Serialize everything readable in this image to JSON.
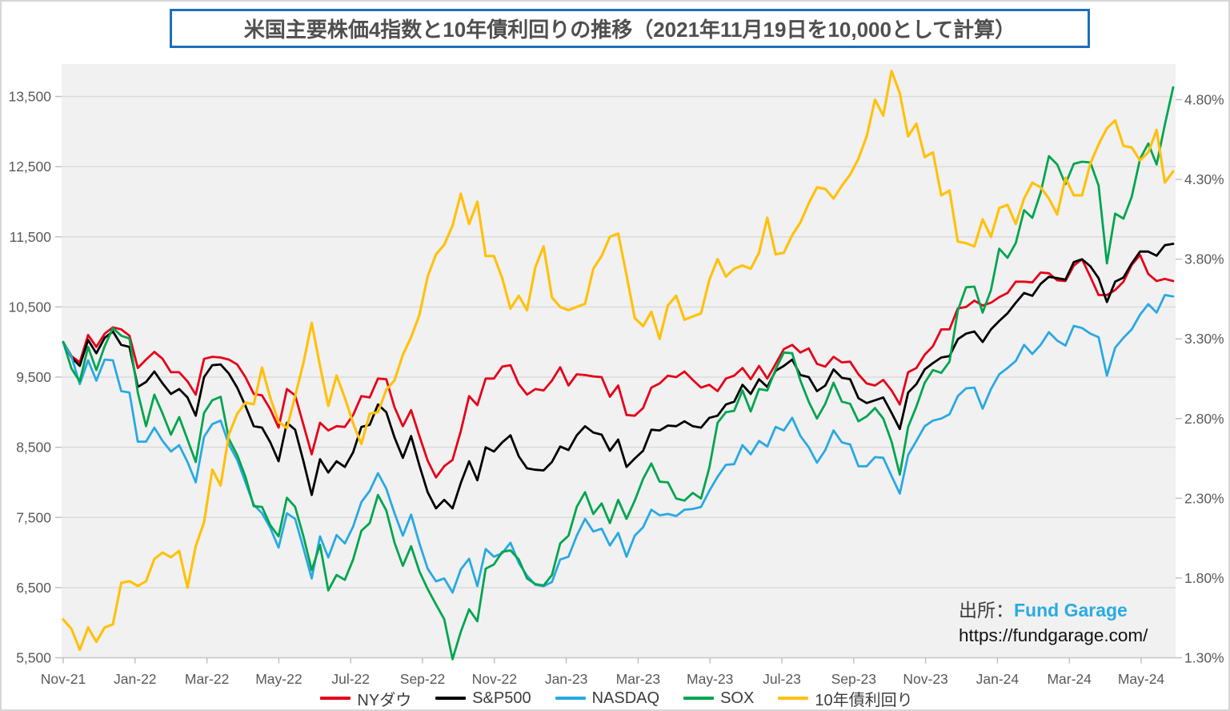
{
  "title": "米国主要株価4指数と10年債利回りの推移（2021年11月19日を10,000として計算）",
  "source": {
    "prefix": "出所：",
    "name": "Fund Garage",
    "url": "https://fundgarage.com/"
  },
  "chart_data": {
    "type": "line",
    "title": "米国主要株価4指数と10年債利回りの推移（2021年11月19日を10,000として計算）",
    "index_base": 10000,
    "grid": "horizontal",
    "legend_position": "bottom",
    "x_axis": {
      "tick_labels": [
        "Nov-21",
        "Jan-22",
        "Mar-22",
        "May-22",
        "Jul-22",
        "Sep-22",
        "Nov-22",
        "Jan-23",
        "Mar-23",
        "May-23",
        "Jul-23",
        "Sep-23",
        "Nov-23",
        "Jan-24",
        "Mar-24",
        "May-24"
      ]
    },
    "y_axis_left": {
      "tick_labels": [
        "13,500",
        "12,500",
        "11,500",
        "10,500",
        "9,500",
        "8,500",
        "7,500",
        "6,500",
        "5,500"
      ],
      "gridline_range": [
        5500,
        13500
      ]
    },
    "y_axis_right": {
      "tick_labels": [
        "4.80%",
        "4.30%",
        "3.80%",
        "3.30%",
        "2.80%",
        "2.30%",
        "1.80%",
        "1.30%"
      ],
      "gridline_range": [
        1.3,
        4.8
      ]
    },
    "series": [
      {
        "name": "NYダウ",
        "key": "dow",
        "color": "#e60019",
        "axis": "left",
        "values": [
          10000,
          9800,
          9710,
          10100,
          9930,
          10120,
          10210,
          10180,
          10090,
          9630,
          9750,
          9860,
          9760,
          9570,
          9570,
          9440,
          9250,
          9760,
          9790,
          9780,
          9750,
          9680,
          9500,
          9260,
          9240,
          9040,
          8780,
          9330,
          9240,
          8820,
          8400,
          8850,
          8740,
          8800,
          8790,
          8960,
          9230,
          9210,
          9480,
          9470,
          9070,
          8800,
          9030,
          8660,
          8310,
          8070,
          8230,
          8320,
          8730,
          9230,
          9100,
          9480,
          9480,
          9650,
          9670,
          9400,
          9250,
          9330,
          9310,
          9450,
          9640,
          9380,
          9540,
          9530,
          9510,
          9500,
          9220,
          9380,
          8960,
          8950,
          9060,
          9350,
          9410,
          9520,
          9500,
          9580,
          9460,
          9350,
          9390,
          9300,
          9480,
          9520,
          9630,
          9470,
          9660,
          9480,
          9690,
          9900,
          9960,
          9850,
          9910,
          9690,
          9650,
          9790,
          9710,
          9720,
          9540,
          9410,
          9380,
          9460,
          9310,
          9110,
          9570,
          9630,
          9820,
          9940,
          10180,
          10180,
          10480,
          10500,
          10590,
          10520,
          10560,
          10640,
          10700,
          10860,
          10860,
          10850,
          10990,
          10980,
          10880,
          10870,
          11090,
          11180,
          10930,
          10670,
          10670,
          10740,
          10860,
          11100,
          11240,
          10970,
          10870,
          10900,
          10870
        ]
      },
      {
        "name": "S&P500",
        "key": "sp500",
        "color": "#000000",
        "axis": "left",
        "values": [
          10000,
          9780,
          9660,
          10030,
          9840,
          10060,
          10150,
          9960,
          9930,
          9360,
          9430,
          9580,
          9410,
          9260,
          9330,
          9210,
          8950,
          9500,
          9670,
          9680,
          9550,
          9350,
          9090,
          8800,
          8780,
          8570,
          8300,
          8850,
          8750,
          8300,
          7820,
          8330,
          8140,
          8300,
          8220,
          8430,
          8790,
          8820,
          9110,
          9000,
          8640,
          8350,
          8660,
          8240,
          7860,
          7630,
          7750,
          7630,
          7990,
          8300,
          8030,
          8500,
          8440,
          8570,
          8670,
          8370,
          8200,
          8180,
          8170,
          8290,
          8510,
          8460,
          8670,
          8800,
          8710,
          8680,
          8450,
          8610,
          8220,
          8340,
          8450,
          8750,
          8740,
          8810,
          8800,
          8870,
          8800,
          8780,
          8920,
          8950,
          9110,
          9150,
          9390,
          9260,
          9470,
          9360,
          9590,
          9660,
          9750,
          9530,
          9500,
          9300,
          9380,
          9610,
          9490,
          9470,
          9200,
          9130,
          9170,
          9210,
          8990,
          8760,
          9280,
          9400,
          9610,
          9700,
          9780,
          9800,
          10040,
          10120,
          10150,
          10000,
          10180,
          10300,
          10410,
          10560,
          10700,
          10660,
          10830,
          10930,
          10910,
          10890,
          11140,
          11180,
          11080,
          10910,
          10570,
          10860,
          10920,
          11120,
          11290,
          11290,
          11230,
          11380,
          11400
        ]
      },
      {
        "name": "NASDAQ",
        "key": "nasdaq",
        "color": "#29a9e2",
        "axis": "left",
        "values": [
          10000,
          9790,
          9400,
          9740,
          9450,
          9750,
          9740,
          9300,
          9280,
          8580,
          8580,
          8780,
          8590,
          8440,
          8530,
          8290,
          8000,
          8650,
          8830,
          8880,
          8540,
          8320,
          8000,
          7680,
          7560,
          7350,
          7070,
          7560,
          7480,
          7060,
          6630,
          7230,
          6930,
          7250,
          7130,
          7370,
          7720,
          7880,
          8130,
          7910,
          7560,
          7240,
          7540,
          7130,
          6770,
          6590,
          6630,
          6430,
          6760,
          6910,
          6520,
          7050,
          6940,
          6990,
          7140,
          6850,
          6670,
          6540,
          6520,
          6580,
          6900,
          6940,
          7240,
          7480,
          7300,
          7340,
          7100,
          7280,
          6940,
          7240,
          7360,
          7610,
          7530,
          7550,
          7520,
          7610,
          7620,
          7650,
          7880,
          8080,
          8250,
          8260,
          8530,
          8400,
          8590,
          8510,
          8790,
          8740,
          8920,
          8660,
          8500,
          8280,
          8460,
          8740,
          8570,
          8540,
          8230,
          8230,
          8360,
          8350,
          8090,
          7840,
          8390,
          8590,
          8800,
          8880,
          8910,
          8970,
          9230,
          9340,
          9350,
          9050,
          9330,
          9540,
          9630,
          9730,
          9960,
          9830,
          9960,
          10140,
          10020,
          9950,
          10230,
          10200,
          10120,
          10070,
          9520,
          9920,
          10060,
          10180,
          10390,
          10540,
          10420,
          10670,
          10650
        ]
      },
      {
        "name": "SOX",
        "key": "sox",
        "color": "#00a54f",
        "axis": "left",
        "values": [
          10000,
          9620,
          9440,
          9930,
          9600,
          9940,
          10200,
          10090,
          10050,
          9280,
          8800,
          9250,
          8980,
          8680,
          8930,
          8610,
          8290,
          8990,
          9170,
          9220,
          8620,
          8390,
          8080,
          7660,
          7650,
          7390,
          7230,
          7780,
          7650,
          7230,
          6750,
          7110,
          6460,
          6680,
          6610,
          6900,
          7310,
          7420,
          7820,
          7600,
          7140,
          6810,
          7090,
          6730,
          6480,
          6260,
          6050,
          5480,
          5870,
          6190,
          6020,
          6770,
          6830,
          7010,
          7030,
          6900,
          6630,
          6550,
          6530,
          6680,
          7130,
          7240,
          7650,
          7860,
          7550,
          7700,
          7420,
          7750,
          7480,
          7740,
          8050,
          8270,
          8010,
          8000,
          7770,
          7740,
          7850,
          7770,
          8210,
          8850,
          9000,
          9020,
          9310,
          9010,
          9330,
          9310,
          9610,
          9850,
          9840,
          9450,
          9150,
          8910,
          9120,
          9420,
          9150,
          9120,
          8870,
          8940,
          9060,
          8910,
          8580,
          8110,
          8790,
          9080,
          9420,
          9600,
          9560,
          9720,
          10450,
          10780,
          10790,
          10420,
          10740,
          11330,
          11200,
          11410,
          11880,
          11770,
          12130,
          12650,
          12530,
          12250,
          12540,
          12570,
          12560,
          12230,
          11120,
          11830,
          11760,
          12070,
          12610,
          12830,
          12530,
          13100,
          13630
        ]
      },
      {
        "name": "10年債利回り",
        "key": "us10y-yield",
        "color": "#ffc10e",
        "axis": "right",
        "values": [
          1.54,
          1.48,
          1.35,
          1.49,
          1.4,
          1.49,
          1.51,
          1.77,
          1.78,
          1.75,
          1.78,
          1.92,
          1.96,
          1.93,
          1.97,
          1.74,
          2.0,
          2.15,
          2.48,
          2.38,
          2.7,
          2.83,
          2.9,
          2.89,
          3.12,
          2.93,
          2.78,
          2.74,
          2.94,
          3.15,
          3.4,
          3.13,
          2.88,
          3.07,
          2.93,
          2.77,
          2.64,
          2.83,
          2.84,
          2.98,
          3.04,
          3.2,
          3.31,
          3.45,
          3.69,
          3.83,
          3.89,
          4.01,
          4.21,
          4.02,
          4.16,
          3.82,
          3.82,
          3.68,
          3.49,
          3.57,
          3.48,
          3.75,
          3.88,
          3.56,
          3.5,
          3.48,
          3.5,
          3.52,
          3.74,
          3.82,
          3.94,
          3.96,
          3.7,
          3.43,
          3.38,
          3.47,
          3.3,
          3.51,
          3.57,
          3.42,
          3.44,
          3.46,
          3.67,
          3.8,
          3.69,
          3.74,
          3.76,
          3.74,
          3.84,
          4.06,
          3.83,
          3.84,
          3.95,
          4.03,
          4.15,
          4.25,
          4.24,
          4.18,
          4.26,
          4.33,
          4.43,
          4.57,
          4.8,
          4.7,
          4.98,
          4.84,
          4.57,
          4.65,
          4.44,
          4.47,
          4.2,
          4.23,
          3.91,
          3.9,
          3.88,
          4.05,
          3.94,
          4.12,
          4.14,
          4.02,
          4.18,
          4.28,
          4.25,
          4.18,
          4.08,
          4.31,
          4.2,
          4.2,
          4.4,
          4.52,
          4.62,
          4.67,
          4.51,
          4.5,
          4.42,
          4.47,
          4.61,
          4.28,
          4.35
        ]
      }
    ]
  }
}
